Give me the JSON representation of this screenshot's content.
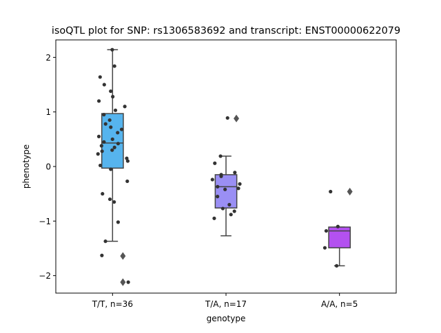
{
  "chart_data": {
    "type": "box",
    "title": "isoQTL plot for SNP: rs1306583692 and transcript: ENST00000622079",
    "xlabel": "genotype",
    "ylabel": "phenotype",
    "ylim": [
      -2.32,
      2.32
    ],
    "yticks": [
      -2,
      -1,
      0,
      1,
      2
    ],
    "ytick_labels": [
      "−2",
      "−1",
      "0",
      "1",
      "2"
    ],
    "grid": false,
    "categories": [
      "T/T, n=36",
      "T/A, n=17",
      "A/A, n=5"
    ],
    "colors": [
      "#56b4ee",
      "#9a8ff4",
      "#b351f0"
    ],
    "point_color": "#333333",
    "box_edge_color": "#444444",
    "boxes": [
      {
        "category": "T/T, n=36",
        "whisker_low": -1.37,
        "q1": -0.03,
        "median": 0.43,
        "q3": 0.97,
        "whisker_high": 2.14,
        "outliers": [
          -1.64,
          -2.12
        ]
      },
      {
        "category": "T/A, n=17",
        "whisker_low": -1.27,
        "q1": -0.76,
        "median": -0.37,
        "q3": -0.15,
        "whisker_high": 0.19,
        "outliers": [
          0.88
        ]
      },
      {
        "category": "A/A, n=5",
        "whisker_low": -1.82,
        "q1": -1.49,
        "median": -1.18,
        "q3": -1.11,
        "whisker_high": -1.11,
        "outliers": [
          -0.46
        ]
      }
    ],
    "points": [
      {
        "category": "T/T, n=36",
        "values": [
          2.14,
          1.84,
          1.64,
          1.5,
          1.38,
          1.28,
          1.2,
          1.1,
          1.03,
          0.85,
          0.78,
          0.68,
          0.62,
          0.55,
          0.5,
          0.45,
          0.42,
          0.38,
          0.35,
          0.3,
          0.28,
          0.23,
          0.15,
          0.1,
          0.02,
          -0.05,
          -0.27,
          -0.5,
          -0.6,
          -0.65,
          -1.02,
          -1.37,
          -1.63,
          -2.12,
          0.72,
          0.95
        ]
      },
      {
        "category": "T/A, n=17",
        "values": [
          0.89,
          0.19,
          0.06,
          -0.11,
          -0.15,
          -0.18,
          -0.24,
          -0.32,
          -0.37,
          -0.4,
          -0.42,
          -0.55,
          -0.7,
          -0.77,
          -0.82,
          -0.88,
          -0.95
        ]
      },
      {
        "category": "A/A, n=5",
        "values": [
          -0.46,
          -1.1,
          -1.18,
          -1.49,
          -1.82
        ]
      }
    ]
  }
}
